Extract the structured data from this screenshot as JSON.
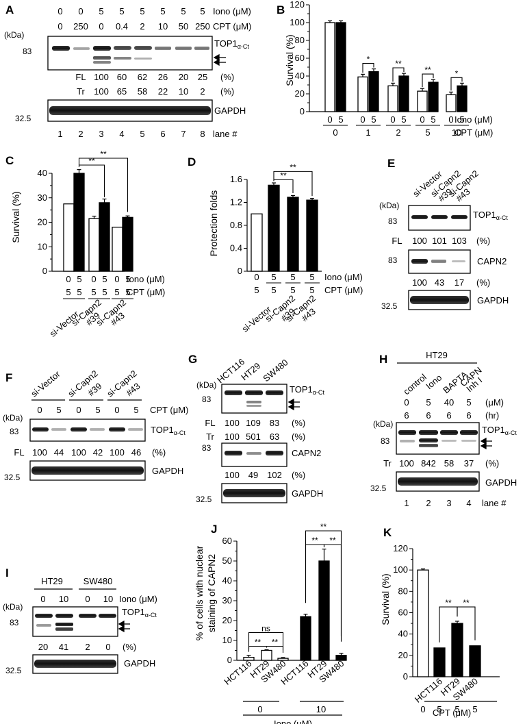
{
  "panel_labels": [
    "A",
    "B",
    "C",
    "D",
    "E",
    "F",
    "G",
    "H",
    "I",
    "J",
    "K"
  ],
  "A": {
    "iono_label": "Iono (μM)",
    "cpt_label": "CPT (μM)",
    "iono": [
      "0",
      "0",
      "5",
      "5",
      "5",
      "5",
      "5",
      "5"
    ],
    "cpt": [
      "0",
      "250",
      "0",
      "0.4",
      "2",
      "10",
      "50",
      "250"
    ],
    "kda": "(kDa)",
    "mw1": "83",
    "mw2": "32.5",
    "band1": "TOP1",
    "band1_sub": "α-Ct",
    "band2": "GAPDH",
    "fl_label": "FL",
    "tr_label": "Tr",
    "fl": [
      "100",
      "60",
      "62",
      "26",
      "20",
      "25"
    ],
    "tr": [
      "100",
      "65",
      "58",
      "22",
      "10",
      "2"
    ],
    "pct": "(%)",
    "lanes": [
      "1",
      "2",
      "3",
      "4",
      "5",
      "6",
      "7",
      "8"
    ],
    "lane_label": "lane #"
  },
  "B": {
    "ylabel": "Survival (%)",
    "yticks": [
      "0",
      "10",
      "20",
      "30",
      "40",
      "50",
      "60",
      "70",
      "80",
      "90",
      "100",
      "110",
      "120"
    ],
    "iono_row": [
      "0",
      "5",
      "0",
      "5",
      "0",
      "5",
      "0",
      "5",
      "0",
      "5"
    ],
    "cpt_row": [
      "0",
      "1",
      "2",
      "5",
      "10"
    ],
    "iono_label": "Iono (μM)",
    "cpt_label": "CPT (μM)",
    "stars": [
      "*",
      "**",
      "**",
      "*"
    ]
  },
  "C": {
    "ylabel": "Survival (%)",
    "yticks": [
      "0",
      "10",
      "20",
      "30",
      "40"
    ],
    "iono_row": [
      "0",
      "5",
      "0",
      "5",
      "0",
      "5"
    ],
    "cpt_row": [
      "5",
      "5",
      "5",
      "5",
      "5",
      "5"
    ],
    "iono_label": "Iono (μM)",
    "cpt_label": "CPT (μM)",
    "groups": [
      "si-Vector",
      "si-Capn2 #39",
      "si-Capn2 #43"
    ],
    "stars": [
      "**",
      "**"
    ]
  },
  "D": {
    "ylabel": "Protection folds",
    "yticks": [
      "0",
      "0.4",
      "0.8",
      "1.2",
      "1.6"
    ],
    "iono_row": [
      "0",
      "5",
      "5",
      "5"
    ],
    "cpt_row": [
      "5",
      "5",
      "5",
      "5"
    ],
    "iono_label": "Iono (μM)",
    "cpt_label": "CPT (μM)",
    "groups": [
      "si-Vector",
      "si-Capn2 #39",
      "si-Capn2 #43"
    ],
    "stars": [
      "**",
      "**"
    ]
  },
  "E": {
    "lanes": [
      "si-Vector",
      "si-Capn2 #39",
      "si-Capn2 #43"
    ],
    "kda": "(kDa)",
    "mw1": "83",
    "mw2": "83",
    "mw3": "32.5",
    "band1": "TOP1",
    "band1_sub": "α-Ct",
    "band2": "CAPN2",
    "band3": "GAPDH",
    "fl_label": "FL",
    "fl": [
      "100",
      "101",
      "103"
    ],
    "capn": [
      "100",
      "43",
      "17"
    ],
    "pct": "(%)"
  },
  "F": {
    "groups": [
      "si-Vector",
      "si-Capn2 #39",
      "si-Capn2 #43"
    ],
    "cpt": [
      "0",
      "5",
      "0",
      "5",
      "0",
      "5"
    ],
    "cpt_label": "CPT (μM)",
    "kda": "(kDa)",
    "mw1": "83",
    "mw2": "32.5",
    "band1": "TOP1",
    "band1_sub": "α-Ct",
    "band2": "GAPDH",
    "fl_label": "FL",
    "fl": [
      "100",
      "44",
      "100",
      "42",
      "100",
      "46"
    ],
    "pct": "(%)"
  },
  "G": {
    "lanes": [
      "HCT116",
      "HT29",
      "SW480"
    ],
    "kda": "(kDa)",
    "mw1": "83",
    "mw2": "83",
    "mw3": "32.5",
    "band1": "TOP1",
    "band1_sub": "α-Ct",
    "band2": "CAPN2",
    "band3": "GAPDH",
    "fl_label": "FL",
    "fl": [
      "100",
      "109",
      "83"
    ],
    "tr_label": "Tr",
    "tr": [
      "100",
      "501",
      "63"
    ],
    "capn": [
      "100",
      "49",
      "102"
    ],
    "pct": "(%)"
  },
  "H": {
    "cell": "HT29",
    "lanes": [
      "control",
      "Iono",
      "BAPTA",
      "CAPN Inh I"
    ],
    "conc": [
      "0",
      "5",
      "40",
      "5"
    ],
    "time": [
      "6",
      "6",
      "6",
      "6"
    ],
    "conc_label": "(μM)",
    "time_label": "(hr)",
    "kda": "(kDa)",
    "mw1": "83",
    "mw2": "32.5",
    "band1": "TOP1",
    "band1_sub": "α-Ct",
    "band2": "GAPDH",
    "tr_label": "Tr",
    "tr": [
      "100",
      "842",
      "58",
      "37"
    ],
    "pct": "(%)",
    "lane_nums": [
      "1",
      "2",
      "3",
      "4"
    ],
    "lane_label": "lane #"
  },
  "I": {
    "cells": [
      "HT29",
      "SW480"
    ],
    "iono": [
      "0",
      "10",
      "0",
      "10"
    ],
    "iono_label": "Iono (μM)",
    "kda": "(kDa)",
    "mw1": "83",
    "mw2": "32.5",
    "band1": "TOP1",
    "band1_sub": "α-Ct",
    "band2": "GAPDH",
    "vals": [
      "20",
      "41",
      "2",
      "0"
    ],
    "pct": "(%)"
  },
  "J": {
    "ylabel1": "% of cells with nuclear",
    "ylabel2": "staining of CAPN2",
    "yticks": [
      "0",
      "10",
      "20",
      "30",
      "40",
      "50",
      "60"
    ],
    "cells": [
      "HCT116",
      "HT29",
      "SW480",
      "HCT116",
      "HT29",
      "SW480"
    ],
    "iono": [
      "0",
      "10"
    ],
    "iono_label": "Iono (μM)",
    "stars": [
      "ns",
      "**",
      "**",
      "**",
      "**",
      "**"
    ]
  },
  "K": {
    "ylabel": "Survival (%)",
    "yticks": [
      "0",
      "20",
      "40",
      "60",
      "80",
      "100",
      "120"
    ],
    "cells": [
      "HCT116",
      "HT29",
      "SW480"
    ],
    "cpt": [
      "0",
      "5",
      "5",
      "5"
    ],
    "cpt_label": "CPT (μM)",
    "stars": [
      "**",
      "**"
    ]
  },
  "chart_data": [
    {
      "type": "bar",
      "panel": "B",
      "ylabel": "Survival (%)",
      "ylim": [
        0,
        120
      ],
      "categories": [
        "0",
        "1",
        "2",
        "5",
        "10"
      ],
      "series": [
        {
          "values": [
            100,
            39,
            29,
            23,
            19
          ]
        },
        {
          "values": [
            100,
            45,
            40,
            33,
            29
          ]
        }
      ]
    },
    {
      "type": "bar",
      "panel": "C",
      "ylabel": "Survival (%)",
      "ylim": [
        0,
        40
      ],
      "categories": [
        "si-Vector",
        "si-Capn2 #39",
        "si-Capn2 #43"
      ],
      "series": [
        {
          "values": [
            27.5,
            21.5,
            18
          ]
        },
        {
          "values": [
            40,
            28,
            22
          ]
        }
      ]
    },
    {
      "type": "bar",
      "panel": "D",
      "ylabel": "Protection folds",
      "ylim": [
        0,
        1.6
      ],
      "categories": [
        "Iono 0",
        "si-Vector",
        "si-Capn2 #39",
        "si-Capn2 #43"
      ],
      "values": [
        1.0,
        1.5,
        1.29,
        1.24
      ]
    },
    {
      "type": "bar",
      "panel": "J",
      "ylim": [
        0,
        60
      ],
      "categories": [
        "HCT116",
        "HT29",
        "SW480",
        "HCT116",
        "HT29",
        "SW480"
      ],
      "values": [
        1.5,
        5,
        1,
        22,
        50,
        2.5
      ]
    },
    {
      "type": "bar",
      "panel": "K",
      "ylabel": "Survival (%)",
      "ylim": [
        0,
        120
      ],
      "categories": [
        "0",
        "HCT116",
        "HT29",
        "SW480"
      ],
      "values": [
        100,
        27,
        50,
        29
      ]
    }
  ]
}
